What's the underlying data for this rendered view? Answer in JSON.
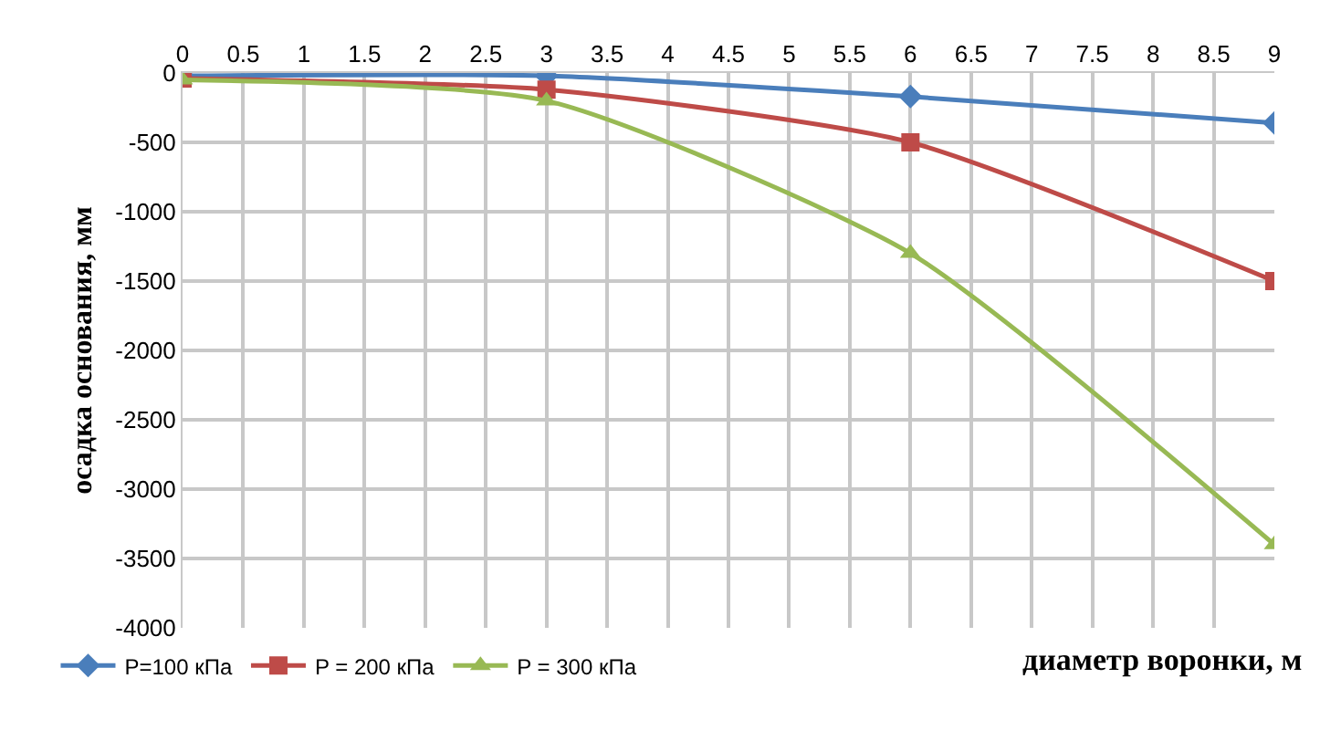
{
  "chart_data": {
    "type": "line",
    "xlabel": "диаметр воронки, м",
    "ylabel": "осадка основания, мм",
    "x": [
      0,
      3,
      6,
      9
    ],
    "series": [
      {
        "name": "P=100 кПа",
        "color": "#4a7ebb",
        "marker": "diamond",
        "values": [
          -20,
          -20,
          -170,
          -360
        ]
      },
      {
        "name": "P = 200 кПа",
        "color": "#be4b48",
        "marker": "square",
        "values": [
          -40,
          -120,
          -500,
          -1500
        ]
      },
      {
        "name": "P = 300 кПа",
        "color": "#98b954",
        "marker": "triangle",
        "values": [
          -50,
          -200,
          -1300,
          -3400
        ]
      }
    ],
    "xlim": [
      0,
      9
    ],
    "xticks": [
      0,
      0.5,
      1,
      1.5,
      2,
      2.5,
      3,
      3.5,
      4,
      4.5,
      5,
      5.5,
      6,
      6.5,
      7,
      7.5,
      8,
      8.5,
      9
    ],
    "ylim": [
      -4000,
      0
    ],
    "yticks": [
      0,
      -500,
      -1000,
      -1500,
      -2000,
      -2500,
      -3000,
      -3500,
      -4000
    ],
    "grid": true,
    "legend": "bottom left"
  }
}
